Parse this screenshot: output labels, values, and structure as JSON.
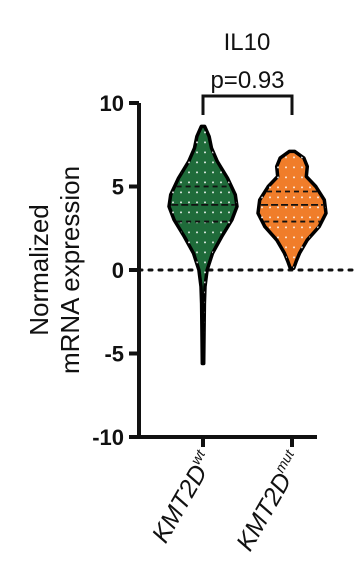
{
  "chart_data": {
    "type": "violin",
    "title": "IL10",
    "ylabel": "Normalized mRNA expression",
    "ylabel_lines": [
      "Normalized",
      "mRNA expression"
    ],
    "ylim": [
      -10,
      10
    ],
    "yticks": [
      "10",
      "5",
      "0",
      "-5",
      "-10"
    ],
    "yticks_values": [
      10,
      5,
      0,
      -5,
      -10
    ],
    "reference_line": 0,
    "categories": [
      {
        "base": "KMT2D",
        "superscript": "wt"
      },
      {
        "base": "KMT2D",
        "superscript": "mut"
      }
    ],
    "series": [
      {
        "category": "KMT2Dwt",
        "color": "#1f6b3a",
        "min": -5.6,
        "max": 8.6,
        "q1": 2.9,
        "median": 3.9,
        "q3": 5.0,
        "density": [
          [
            -5.6,
            0.02
          ],
          [
            -4,
            0.03
          ],
          [
            -2,
            0.04
          ],
          [
            -1,
            0.06
          ],
          [
            0,
            0.12
          ],
          [
            1,
            0.28
          ],
          [
            2,
            0.55
          ],
          [
            3,
            0.85
          ],
          [
            3.8,
            1.0
          ],
          [
            4.5,
            0.95
          ],
          [
            5.5,
            0.72
          ],
          [
            6.5,
            0.42
          ],
          [
            7.3,
            0.25
          ],
          [
            8.0,
            0.18
          ],
          [
            8.6,
            0.05
          ]
        ]
      },
      {
        "category": "KMT2Dmut",
        "color": "#f07d2a",
        "min": 0.1,
        "max": 7.1,
        "q1": 2.9,
        "median": 3.9,
        "q3": 4.7,
        "density": [
          [
            0.1,
            0.05
          ],
          [
            0.5,
            0.12
          ],
          [
            1,
            0.22
          ],
          [
            1.8,
            0.45
          ],
          [
            2.6,
            0.8
          ],
          [
            3.4,
            1.0
          ],
          [
            4.2,
            0.95
          ],
          [
            5.0,
            0.7
          ],
          [
            5.6,
            0.42
          ],
          [
            6.2,
            0.45
          ],
          [
            6.7,
            0.35
          ],
          [
            7.1,
            0.08
          ]
        ]
      }
    ],
    "comparison": {
      "label": "p=0.93",
      "from": 0,
      "to": 1
    }
  }
}
